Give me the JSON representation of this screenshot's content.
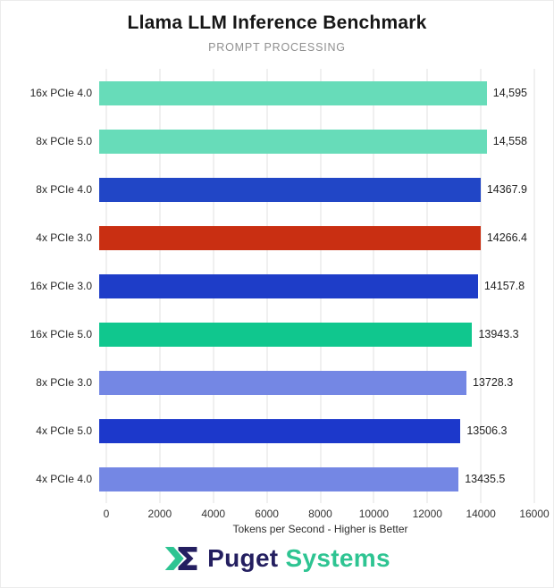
{
  "header": {
    "title": "Llama LLM Inference Benchmark",
    "subtitle": "PROMPT PROCESSING"
  },
  "chart_data": {
    "type": "bar",
    "orientation": "horizontal",
    "title": "Llama LLM Inference Benchmark",
    "subtitle": "PROMPT PROCESSING",
    "categories": [
      "16x PCIe 4.0",
      "8x PCIe 5.0",
      "8x PCIe 4.0",
      "4x PCIe 3.0",
      "16x PCIe 3.0",
      "16x PCIe 5.0",
      "8x PCIe 3.0",
      "4x PCIe 5.0",
      "4x PCIe 4.0"
    ],
    "values": [
      14595,
      14558,
      14367.9,
      14266.4,
      14157.8,
      13943.3,
      13728.3,
      13506.3,
      13435.5
    ],
    "value_labels": [
      "14,595",
      "14,558",
      "14367.9",
      "14266.4",
      "14157.8",
      "13943.3",
      "13728.3",
      "13506.3",
      "13435.5"
    ],
    "bar_colors": [
      "#67DCB9",
      "#67DCB9",
      "#2146C6",
      "#C92F12",
      "#1E3DC8",
      "#10C78E",
      "#7487E4",
      "#1C38CB",
      "#7487E4"
    ],
    "xlabel": "Tokens per Second - Higher is Better",
    "ylabel": "",
    "xlim": [
      0,
      16000
    ],
    "x_ticks": [
      0,
      2000,
      4000,
      6000,
      8000,
      10000,
      12000,
      14000,
      16000
    ],
    "grid": true,
    "legend": false
  },
  "footer": {
    "brand_primary": "Puget",
    "brand_secondary": "Systems",
    "brand_navy": "#241F60",
    "brand_teal": "#2EC492"
  }
}
